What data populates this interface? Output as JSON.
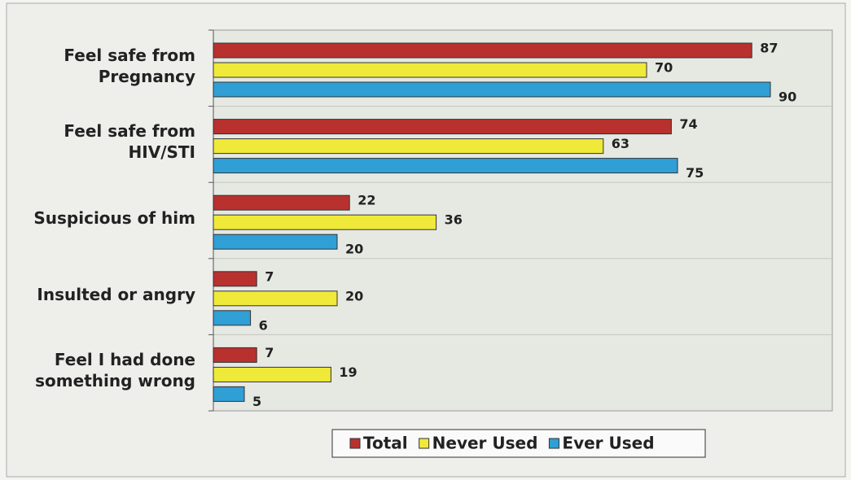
{
  "chart_data": {
    "type": "barh",
    "categories": [
      "Feel  safe from\nPregnancy",
      "Feel safe from\nHIV/STI",
      "Suspicious of him",
      "Insulted or angry",
      "Feel I had done\nsomething wrong"
    ],
    "series": [
      {
        "name": "Total",
        "color": "#b8312f",
        "values": [
          87,
          74,
          22,
          7,
          7
        ]
      },
      {
        "name": "Never Used",
        "color": "#efe93a",
        "values": [
          70,
          63,
          36,
          20,
          19
        ]
      },
      {
        "name": "Ever Used",
        "color": "#2f9fd6",
        "values": [
          90,
          75,
          20,
          6,
          5
        ]
      }
    ],
    "xlim": [
      0,
      100
    ],
    "legend": "bottom"
  }
}
